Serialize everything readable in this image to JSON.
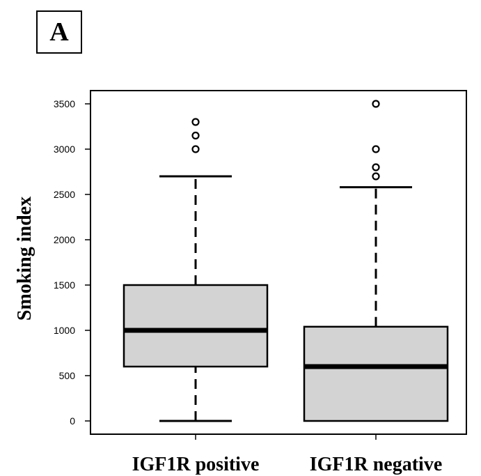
{
  "panel_label": "A",
  "chart_data": {
    "type": "boxplot",
    "title": "",
    "xlabel": "",
    "ylabel": "Smoking index",
    "ylim": [
      -150,
      3650
    ],
    "yticks": [
      0,
      500,
      1000,
      1500,
      2000,
      2500,
      3000,
      3500
    ],
    "categories": [
      "IGF1R positive",
      "IGF1R negative"
    ],
    "boxes": [
      {
        "category": "IGF1R positive",
        "whisker_low": 0,
        "q1": 600,
        "median": 1000,
        "q3": 1500,
        "whisker_high": 2700,
        "outliers": [
          3000,
          3150,
          3300
        ]
      },
      {
        "category": "IGF1R negative",
        "whisker_low": 0,
        "q1": 0,
        "median": 600,
        "q3": 1040,
        "whisker_high": 2580,
        "outliers": [
          2700,
          2800,
          3000,
          3500
        ]
      }
    ],
    "box_fill": "#d3d3d3",
    "grid": false
  }
}
